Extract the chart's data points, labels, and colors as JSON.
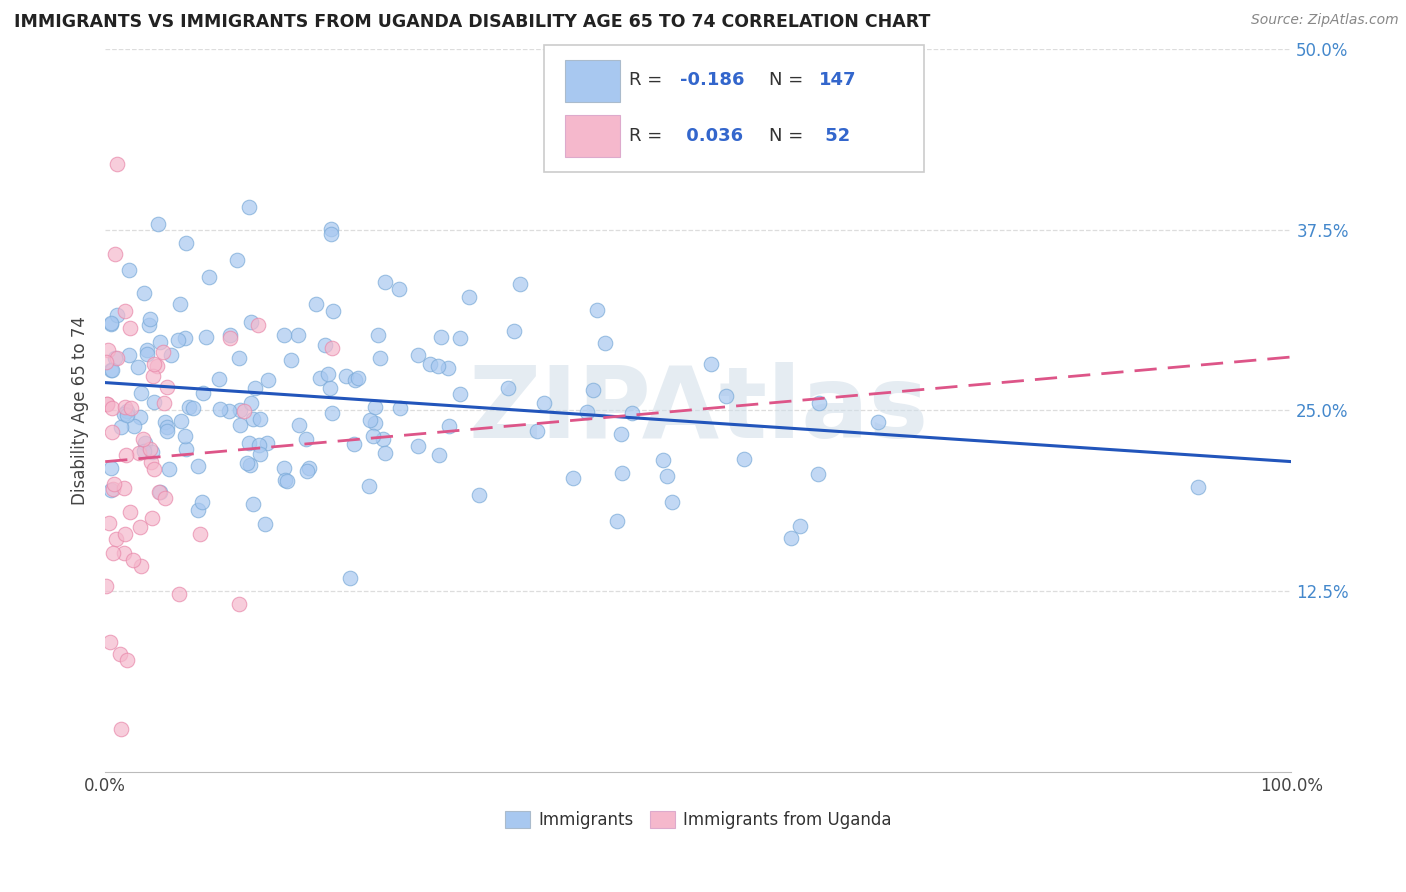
{
  "title": "IMMIGRANTS VS IMMIGRANTS FROM UGANDA DISABILITY AGE 65 TO 74 CORRELATION CHART",
  "source": "Source: ZipAtlas.com",
  "ylabel": "Disability Age 65 to 74",
  "xlim": [
    0,
    1.0
  ],
  "ylim": [
    0.0,
    0.5
  ],
  "xticks": [
    0.0,
    0.25,
    0.5,
    0.75,
    1.0
  ],
  "xtick_labels": [
    "0.0%",
    "",
    "",
    "",
    "100.0%"
  ],
  "ytick_labels": [
    "12.5%",
    "25.0%",
    "37.5%",
    "50.0%"
  ],
  "yticks": [
    0.125,
    0.25,
    0.375,
    0.5
  ],
  "blue_R": -0.186,
  "blue_N": 147,
  "pink_R": 0.036,
  "pink_N": 52,
  "blue_color": "#a8c8f0",
  "blue_edge_color": "#7aaad8",
  "pink_color": "#f5b8cc",
  "pink_edge_color": "#e888aa",
  "blue_line_color": "#2255bb",
  "pink_line_color": "#dd5588",
  "watermark_color": "#d0dde8",
  "legend_x1_label": "Immigrants",
  "legend_x2_label": "Immigrants from Uganda",
  "background_color": "#ffffff",
  "grid_color": "#dddddd",
  "title_color": "#222222",
  "source_color": "#888888",
  "axis_label_color": "#444444",
  "tick_color": "#4488cc"
}
